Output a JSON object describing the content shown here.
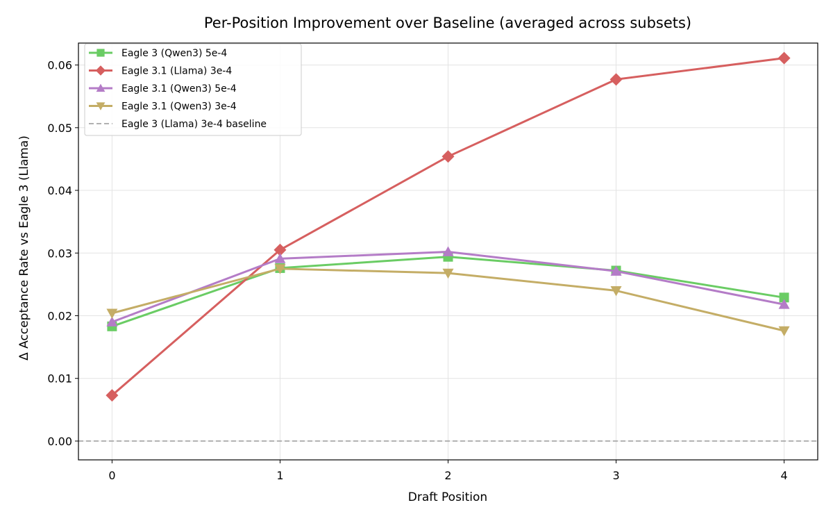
{
  "chart_data": {
    "type": "line",
    "title": "Per-Position Improvement over Baseline (averaged across subsets)",
    "xlabel": "Draft Position",
    "ylabel": "Δ Acceptance Rate vs Eagle 3 (Llama)",
    "x": [
      0,
      1,
      2,
      3,
      4
    ],
    "x_ticks": [
      "0",
      "1",
      "2",
      "3",
      "4"
    ],
    "xlim": [
      -0.2,
      4.2
    ],
    "ylim": [
      -0.003,
      0.0635
    ],
    "y_ticks": [
      "0.00",
      "0.01",
      "0.02",
      "0.03",
      "0.04",
      "0.05",
      "0.06"
    ],
    "y_tick_values": [
      0.0,
      0.01,
      0.02,
      0.03,
      0.04,
      0.05,
      0.06
    ],
    "grid": true,
    "legend_position": "top-left",
    "series": [
      {
        "name": "Eagle 3 (Qwen3) 5e-4",
        "color": "#6acc64",
        "marker": "square",
        "values": [
          0.0183,
          0.0276,
          0.0294,
          0.0272,
          0.0229
        ]
      },
      {
        "name": "Eagle 3.1 (Llama) 3e-4",
        "color": "#d65f5f",
        "marker": "diamond",
        "values": [
          0.0073,
          0.0305,
          0.0454,
          0.0577,
          0.0611
        ]
      },
      {
        "name": "Eagle 3.1 (Qwen3) 5e-4",
        "color": "#b47cc7",
        "marker": "triangle-up",
        "values": [
          0.019,
          0.0291,
          0.0302,
          0.0271,
          0.0218
        ]
      },
      {
        "name": "Eagle 3.1 (Qwen3) 3e-4",
        "color": "#c4ad66",
        "marker": "triangle-down",
        "values": [
          0.0204,
          0.0275,
          0.0268,
          0.024,
          0.0176
        ]
      }
    ],
    "baseline": {
      "name": "Eagle 3 (Llama) 3e-4 baseline",
      "value": 0.0,
      "color": "#b0b0b0",
      "style": "dashed"
    }
  }
}
